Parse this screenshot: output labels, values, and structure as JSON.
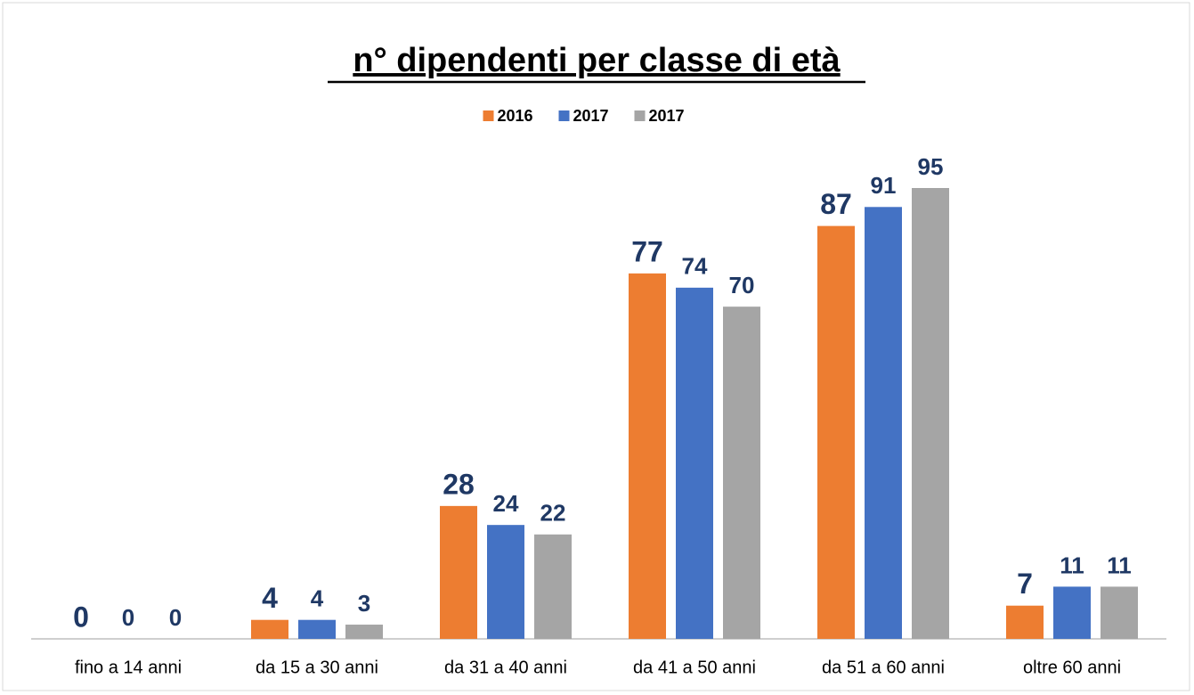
{
  "chart_data": {
    "type": "bar",
    "title": "n° dipendenti per classe di età",
    "categories": [
      "fino a 14 anni",
      "da 15 a 30 anni",
      "da 31 a 40 anni",
      "da 41 a 50 anni",
      "da 51 a 60 anni",
      "oltre 60 anni"
    ],
    "series": [
      {
        "name": "2016",
        "color": "#ed7d31",
        "values": [
          0,
          4,
          28,
          77,
          87,
          7
        ]
      },
      {
        "name": "2017",
        "color": "#4472c4",
        "values": [
          0,
          4,
          24,
          74,
          91,
          11
        ]
      },
      {
        "name": "2017",
        "color": "#a5a5a5",
        "values": [
          0,
          3,
          22,
          70,
          95,
          11
        ]
      }
    ],
    "legend": "top"
  }
}
